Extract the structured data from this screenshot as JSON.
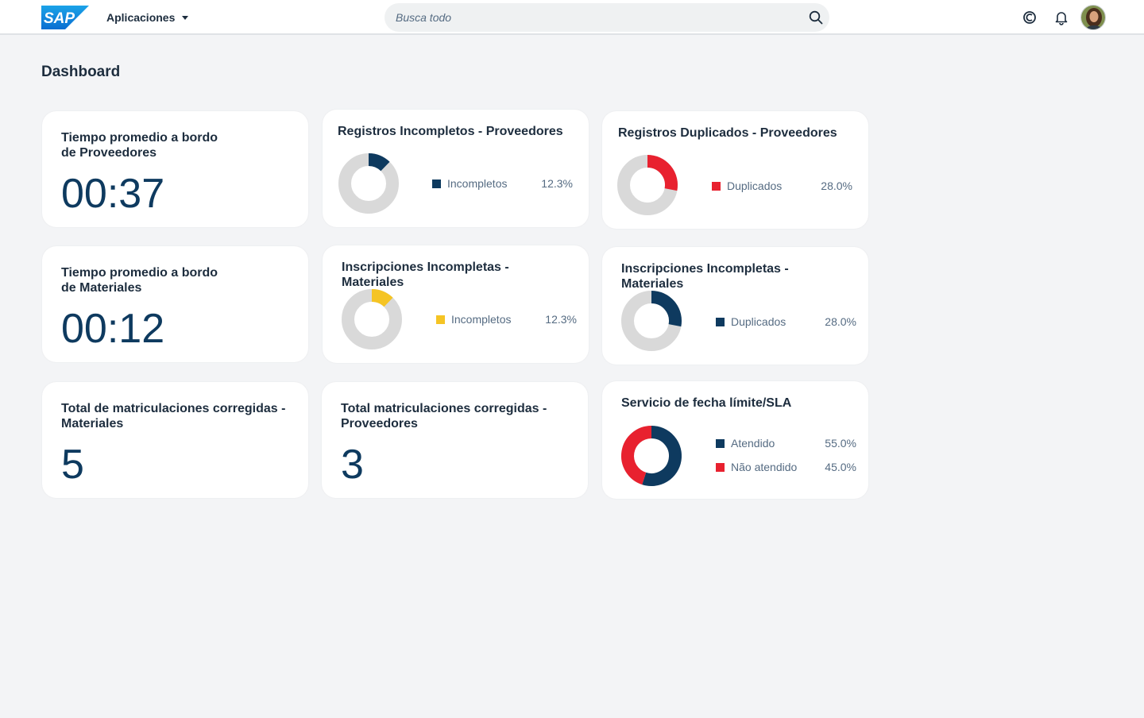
{
  "header": {
    "logo_text": "SAP",
    "apps_label": "Aplicaciones",
    "search_placeholder": "Busca todo",
    "icons": [
      "search-icon",
      "copilot-icon",
      "bell-icon"
    ]
  },
  "page": {
    "title": "Dashboard"
  },
  "colors": {
    "navy": "#0e3a5f",
    "red": "#e8212f",
    "yellow": "#f5c424",
    "track": "#d9d9d9"
  },
  "cards": {
    "kpi_proveedores": {
      "title": "Tiempo promedio a bordo de Proveedores",
      "value": "00:37"
    },
    "kpi_materiales": {
      "title": "Tiempo promedio a bordo de Materiales",
      "value": "00:12"
    },
    "kpi_total_materiales": {
      "title": "Total de matriculaciones corregidas - Materiales",
      "value": "5"
    },
    "kpi_total_proveedores": {
      "title": "Total matriculaciones corregidas - Proveedores",
      "value": "3"
    },
    "reg_incompletos": {
      "title": "Registros Incompletos - Proveedores",
      "legend": {
        "label": "Incompletos",
        "pct": "12.3%"
      }
    },
    "reg_duplicados": {
      "title": "Registros Duplicados - Proveedores",
      "legend": {
        "label": "Duplicados",
        "pct": "28.0%"
      }
    },
    "ins_incompletas": {
      "title": "Inscripciones Incompletas - Materiales",
      "legend": {
        "label": "Incompletos",
        "pct": "12.3%"
      }
    },
    "ins_duplicados": {
      "title": "Inscripciones Incompletas - Materiales",
      "legend": {
        "label": "Duplicados",
        "pct": "28.0%"
      }
    },
    "sla": {
      "title": "Servicio de fecha límite/SLA",
      "legend": [
        {
          "label": "Atendido",
          "pct": "55.0%"
        },
        {
          "label": "Não atendido",
          "pct": "45.0%"
        }
      ]
    }
  },
  "chart_data": [
    {
      "type": "pie",
      "title": "Registros Incompletos - Proveedores",
      "categories": [
        "Incompletos"
      ],
      "values": [
        12.3
      ],
      "colors": [
        "#0e3a5f"
      ]
    },
    {
      "type": "pie",
      "title": "Registros Duplicados - Proveedores",
      "categories": [
        "Duplicados"
      ],
      "values": [
        28.0
      ],
      "colors": [
        "#e8212f"
      ]
    },
    {
      "type": "pie",
      "title": "Inscripciones Incompletas - Materiales",
      "categories": [
        "Incompletos"
      ],
      "values": [
        12.3
      ],
      "colors": [
        "#f5c424"
      ]
    },
    {
      "type": "pie",
      "title": "Inscripciones Incompletas - Materiales",
      "categories": [
        "Duplicados"
      ],
      "values": [
        28.0
      ],
      "colors": [
        "#0e3a5f"
      ]
    },
    {
      "type": "pie",
      "title": "Servicio de fecha límite/SLA",
      "categories": [
        "Atendido",
        "Não atendido"
      ],
      "values": [
        55.0,
        45.0
      ],
      "colors": [
        "#0e3a5f",
        "#e8212f"
      ]
    }
  ]
}
